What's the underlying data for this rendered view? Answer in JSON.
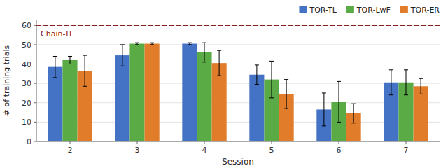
{
  "chart_data": {
    "type": "bar",
    "categories": [
      "2",
      "3",
      "4",
      "5",
      "6",
      "7"
    ],
    "xlabel": "Session",
    "ylabel": "# of training trials",
    "series": [
      {
        "name": "TOR-TL",
        "color": "#4472c4",
        "values": [
          38.5,
          44.5,
          50.5,
          34.5,
          16.5,
          30.5
        ],
        "errors": [
          5.5,
          5.5,
          0.5,
          5.0,
          8.5,
          6.5
        ]
      },
      {
        "name": "TOR-LwF",
        "color": "#5aaa45",
        "values": [
          42.0,
          50.5,
          46.0,
          32.0,
          20.5,
          30.5
        ],
        "errors": [
          2.0,
          0.5,
          5.0,
          9.5,
          10.5,
          6.5
        ]
      },
      {
        "name": "TOR-ER",
        "color": "#e07c2a",
        "values": [
          36.5,
          50.5,
          40.5,
          24.5,
          14.5,
          28.5
        ],
        "errors": [
          8.0,
          0.5,
          6.5,
          7.5,
          5.0,
          4.0
        ]
      }
    ],
    "annotations": [
      {
        "text": "Chain-TL",
        "y": 60,
        "color": "#8b2020",
        "line_style": "dashed"
      }
    ],
    "ylim": [
      0,
      63
    ],
    "yticks": [
      0,
      10,
      20,
      30,
      40,
      50,
      60
    ],
    "grid": true,
    "legend": "upper right"
  }
}
